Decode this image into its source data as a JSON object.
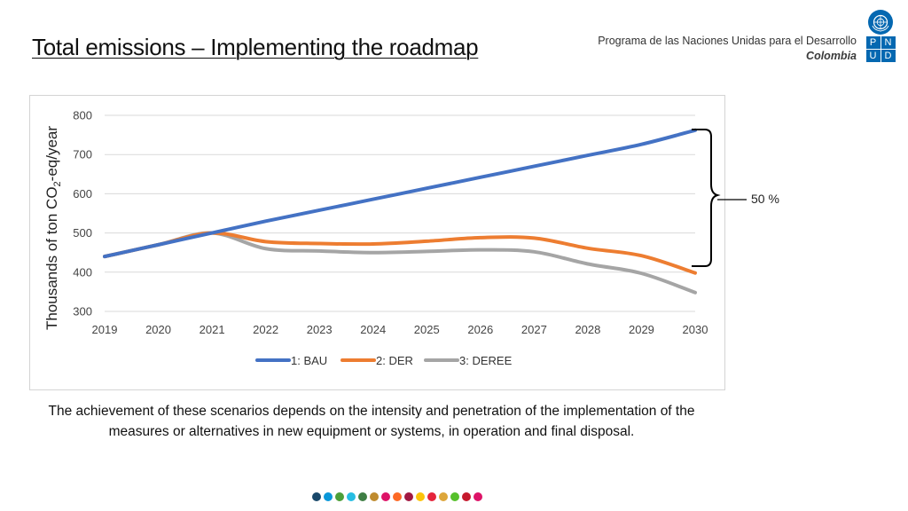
{
  "header": {
    "title": "Total emissions – Implementing the roadmap",
    "org_name": "Programa de las Naciones Unidas para el Desarrollo",
    "org_country": "Colombia",
    "logo_letters": [
      "P",
      "N",
      "U",
      "D"
    ]
  },
  "chart_data": {
    "type": "line",
    "title": "",
    "xlabel": "",
    "ylabel": "Thousands of ton CO2-eq/year",
    "ylabel_parts": [
      "Thousands of ton CO",
      "2",
      "-eq/year"
    ],
    "categories": [
      "2019",
      "2020",
      "2021",
      "2022",
      "2023",
      "2024",
      "2025",
      "2026",
      "2027",
      "2028",
      "2029",
      "2030"
    ],
    "yticks": [
      300,
      400,
      500,
      600,
      700,
      800
    ],
    "ylim": [
      300,
      800
    ],
    "grid": true,
    "legend_position": "bottom",
    "series": [
      {
        "name": "1: BAU",
        "color": "#4472c4",
        "values": [
          440,
          470,
          500,
          530,
          558,
          586,
          614,
          642,
          670,
          698,
          726,
          762
        ]
      },
      {
        "name": "2: DER",
        "color": "#ed7d31",
        "values": [
          440,
          470,
          500,
          478,
          473,
          472,
          479,
          488,
          487,
          461,
          442,
          398
        ]
      },
      {
        "name": "3: DEREE",
        "color": "#a5a5a5",
        "values": [
          440,
          470,
          500,
          460,
          454,
          450,
          453,
          457,
          452,
          421,
          397,
          348
        ]
      }
    ]
  },
  "annotation": {
    "label": "50 %"
  },
  "caption": "The achievement of these scenarios depends on the intensity and penetration of the implementation of the measures or alternatives in new equipment or systems, in operation and final disposal.",
  "sdg_colors": [
    "#19486a",
    "#0a97d9",
    "#4c9f38",
    "#26bde2",
    "#3f7e44",
    "#bf8b2e",
    "#dd1367",
    "#fd6925",
    "#a21942",
    "#fcc30b",
    "#e5243b",
    "#dda63a",
    "#56c02b",
    "#c5192d",
    "#dd1367"
  ]
}
